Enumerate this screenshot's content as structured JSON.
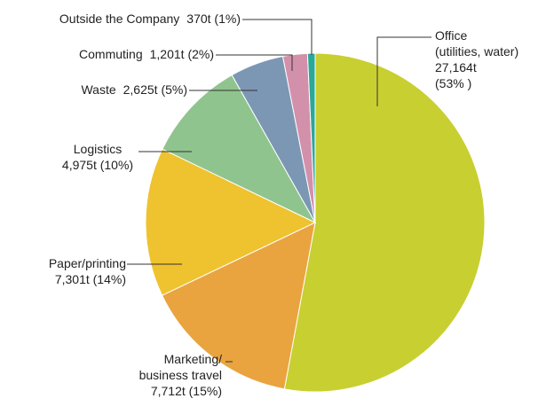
{
  "chart_data": {
    "type": "pie",
    "categories": [
      "Office\n(utilities, water)",
      "Marketing/\nbusiness travel",
      "Paper/printing",
      "Logistics",
      "Waste",
      "Commuting",
      "Outside the Company"
    ],
    "values": [
      27164,
      7712,
      7301,
      4975,
      2625,
      1201,
      370
    ],
    "value_labels": [
      "27,164t\n(53% )",
      "7,712t (15%)",
      "7,301t (14%)",
      "4,975t (10%)",
      "2,625t (5%)",
      "1,201t (2%)",
      "370t (1%)"
    ],
    "colors": [
      "#c8cf30",
      "#e9a43f",
      "#efc22f",
      "#90c48e",
      "#7c97b4",
      "#d390aa",
      "#2aa898"
    ]
  }
}
